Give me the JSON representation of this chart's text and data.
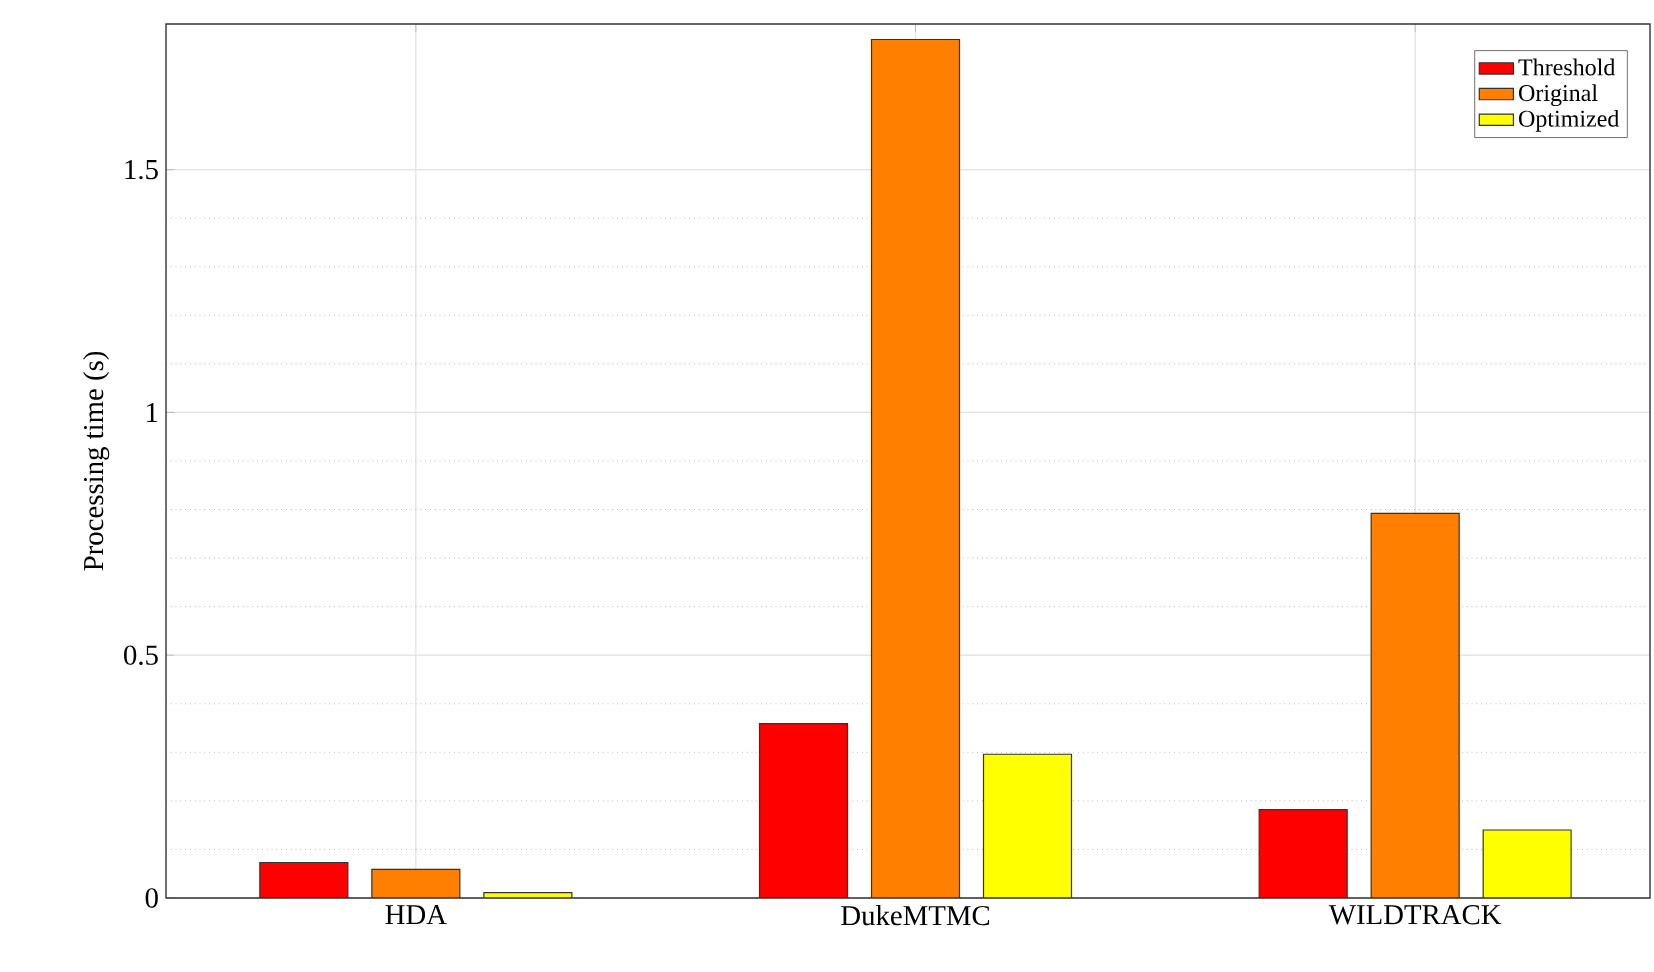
{
  "chart_data": {
    "type": "bar",
    "ylabel": "Processing time (s)",
    "categories": [
      "HDA",
      "DukeMTMC",
      "WILDTRACK"
    ],
    "series": [
      {
        "name": "Threshold",
        "color": "#ff0000",
        "values": [
          0.073,
          0.359,
          0.182
        ]
      },
      {
        "name": "Original",
        "color": "#ff8000",
        "values": [
          0.059,
          1.768,
          0.792
        ]
      },
      {
        "name": "Optimized",
        "color": "#ffff00",
        "values": [
          0.011,
          0.296,
          0.14
        ]
      }
    ],
    "ylim": [
      0,
      1.8
    ],
    "yticks": [
      0,
      0.5,
      1,
      1.5
    ],
    "grid": true,
    "legend": "top right"
  }
}
